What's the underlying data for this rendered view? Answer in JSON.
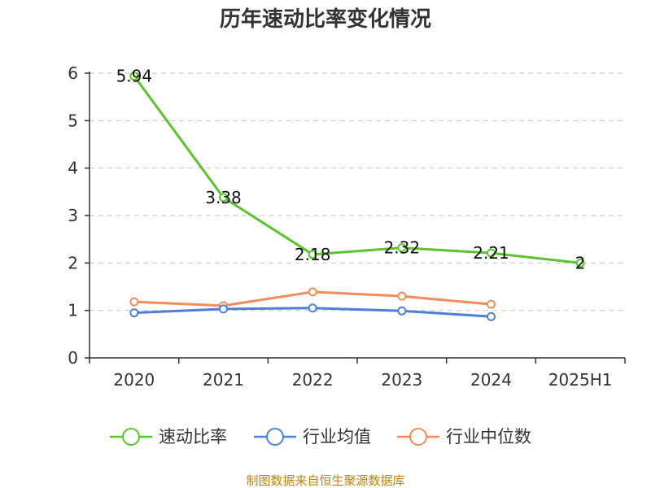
{
  "chart_data": {
    "type": "line",
    "title": "历年速动比率变化情况",
    "categories": [
      "2020",
      "2021",
      "2022",
      "2023",
      "2024",
      "2025H1"
    ],
    "ylim": [
      0,
      6
    ],
    "yticks": [
      "0",
      "1",
      "2",
      "3",
      "4",
      "5",
      "6"
    ],
    "grid": true,
    "legend_position": "bottom",
    "series": [
      {
        "name": "速动比率",
        "color": "#5bc42b",
        "values": [
          5.94,
          3.38,
          2.18,
          2.32,
          2.21,
          2
        ],
        "labels": [
          "5.94",
          "3.38",
          "2.18",
          "2.32",
          "2.21",
          "2"
        ]
      },
      {
        "name": "行业均值",
        "color": "#4e7fd6",
        "values": [
          0.95,
          1.03,
          1.05,
          0.99,
          0.87,
          null
        ]
      },
      {
        "name": "行业中位数",
        "color": "#f28c5a",
        "values": [
          1.18,
          1.1,
          1.39,
          1.3,
          1.13,
          null
        ]
      }
    ],
    "source": "制图数据来自恒生聚源数据库"
  }
}
